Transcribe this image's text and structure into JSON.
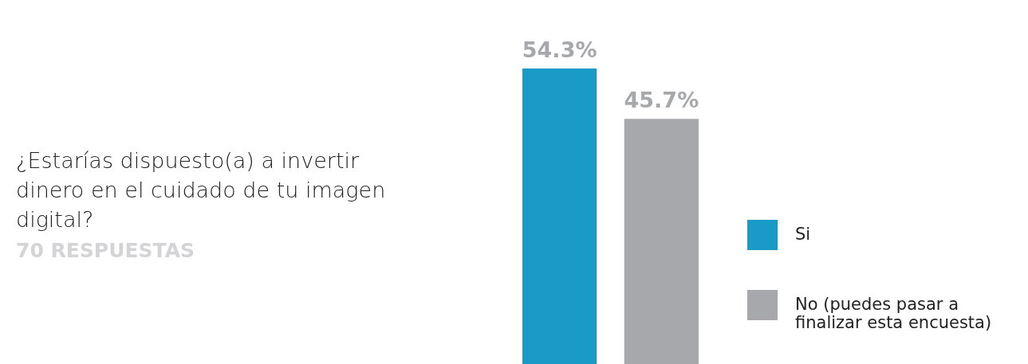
{
  "chart_data": {
    "type": "bar",
    "title": "¿Estarías dispuesto(a) a invertir dinero en el cuidado de tu imagen digital?",
    "subtitle": "70 RESPUESTAS",
    "categories": [
      null
    ],
    "legend": "right",
    "series": [
      {
        "name": "Si",
        "color": "#1a9bc7",
        "values": [
          54.3
        ],
        "value_labels": [
          "54.3%"
        ]
      },
      {
        "name": "No (puedes pasar a finalizar esta encuesta)",
        "color": "#a7a8ab",
        "values": [
          45.7
        ],
        "value_labels": [
          "45.7%"
        ]
      }
    ]
  }
}
